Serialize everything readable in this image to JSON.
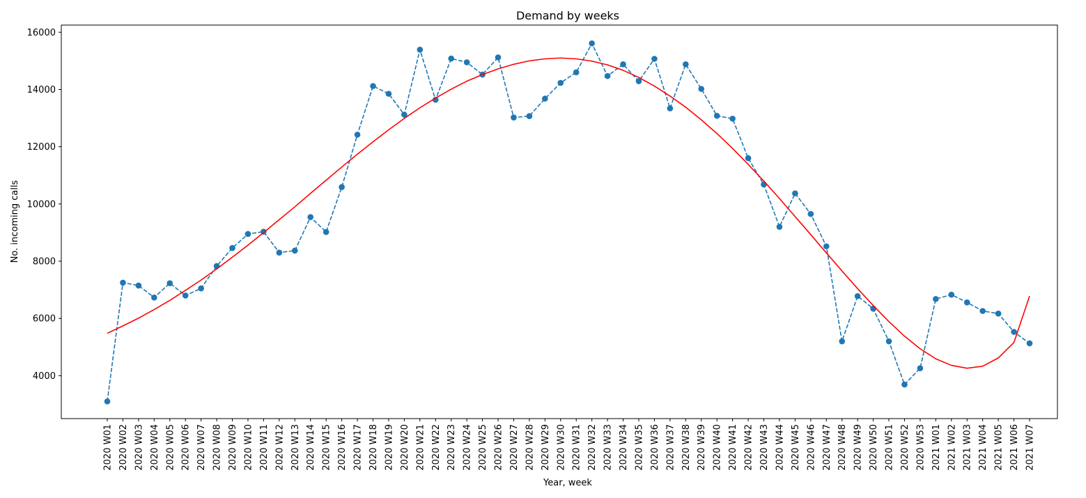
{
  "chart_data": {
    "type": "line",
    "title": "Demand by weeks",
    "xlabel": "Year, week",
    "ylabel": "No. incoming calls",
    "ylim": [
      2500,
      16250
    ],
    "yticks": [
      4000,
      6000,
      8000,
      10000,
      12000,
      14000,
      16000
    ],
    "grid": false,
    "legend": "none",
    "categories": [
      "2020 W01",
      "2020 W02",
      "2020 W03",
      "2020 W04",
      "2020 W05",
      "2020 W06",
      "2020 W07",
      "2020 W08",
      "2020 W09",
      "2020 W10",
      "2020 W11",
      "2020 W12",
      "2020 W13",
      "2020 W14",
      "2020 W15",
      "2020 W16",
      "2020 W17",
      "2020 W18",
      "2020 W19",
      "2020 W20",
      "2020 W21",
      "2020 W22",
      "2020 W23",
      "2020 W24",
      "2020 W25",
      "2020 W26",
      "2020 W27",
      "2020 W28",
      "2020 W29",
      "2020 W30",
      "2020 W31",
      "2020 W32",
      "2020 W33",
      "2020 W34",
      "2020 W35",
      "2020 W36",
      "2020 W37",
      "2020 W38",
      "2020 W39",
      "2020 W40",
      "2020 W41",
      "2020 W42",
      "2020 W43",
      "2020 W44",
      "2020 W45",
      "2020 W46",
      "2020 W47",
      "2020 W48",
      "2020 W49",
      "2020 W50",
      "2020 W51",
      "2020 W52",
      "2020 W53",
      "2021 W01",
      "2021 W02",
      "2021 W03",
      "2021 W04",
      "2021 W05",
      "2021 W06",
      "2021 W07"
    ],
    "series": [
      {
        "style": "dashed-markers",
        "color": "#1f77b4",
        "values": [
          3100,
          7250,
          7150,
          6730,
          7230,
          6800,
          7050,
          7830,
          8460,
          8950,
          9030,
          8300,
          8370,
          9540,
          9020,
          10590,
          12420,
          14120,
          13850,
          13120,
          15390,
          13640,
          15080,
          14950,
          14520,
          15120,
          13020,
          13070,
          13680,
          14230,
          14600,
          15610,
          14470,
          14880,
          14290,
          15070,
          13340,
          14880,
          14020,
          13080,
          12980,
          11600,
          10680,
          9200,
          10370,
          9650,
          8520,
          5200,
          6780,
          6340,
          5200,
          3690,
          4260,
          6680,
          6830,
          6560,
          6260,
          6170,
          5530,
          5130
        ]
      },
      {
        "style": "solid",
        "color": "#ff0000",
        "values": [
          5480,
          5740,
          6010,
          6310,
          6630,
          6980,
          7340,
          7730,
          8140,
          8560,
          9000,
          9450,
          9900,
          10370,
          10830,
          11290,
          11740,
          12170,
          12590,
          12990,
          13360,
          13700,
          14010,
          14290,
          14520,
          14720,
          14880,
          15000,
          15070,
          15100,
          15070,
          14990,
          14860,
          14670,
          14420,
          14120,
          13770,
          13380,
          12940,
          12460,
          11940,
          11380,
          10800,
          10190,
          9560,
          8930,
          8290,
          7660,
          7040,
          6450,
          5890,
          5380,
          4940,
          4590,
          4360,
          4260,
          4330,
          4620,
          5160,
          6780
        ]
      }
    ]
  }
}
